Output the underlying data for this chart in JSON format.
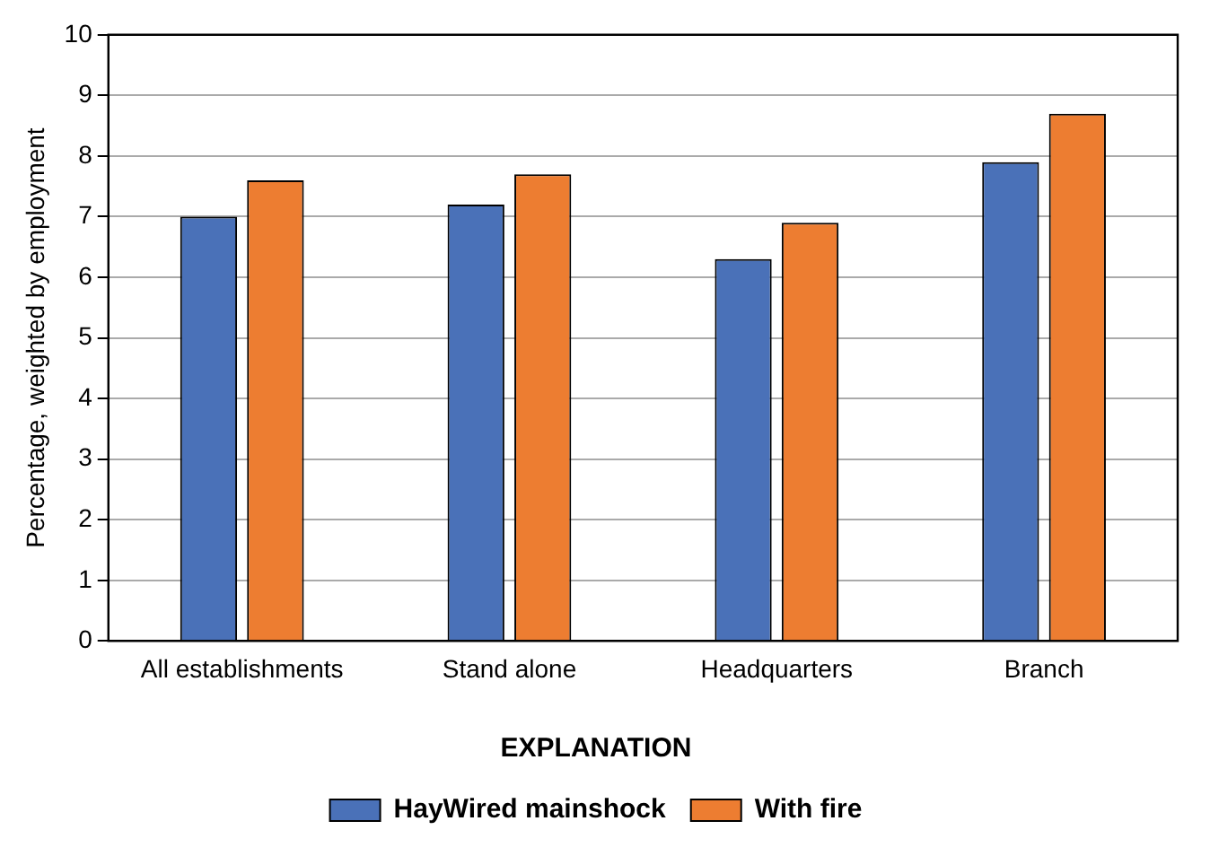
{
  "chart_data": {
    "type": "bar",
    "ylabel": "Percentage, weighted by employment",
    "legend_title": "EXPLANATION",
    "categories": [
      "All establishments",
      "Stand alone",
      "Headquarters",
      "Branch"
    ],
    "series": [
      {
        "name": "HayWired mainshock",
        "color": "#4a71b8",
        "values": [
          7.0,
          7.2,
          6.3,
          7.9
        ]
      },
      {
        "name": "With fire",
        "color": "#ed7d31",
        "values": [
          7.6,
          7.7,
          6.9,
          8.7
        ]
      }
    ],
    "ylim": [
      0,
      10
    ],
    "yticks": [
      0,
      1,
      2,
      3,
      4,
      5,
      6,
      7,
      8,
      9,
      10
    ],
    "grid": "y",
    "legend": "bottom"
  }
}
